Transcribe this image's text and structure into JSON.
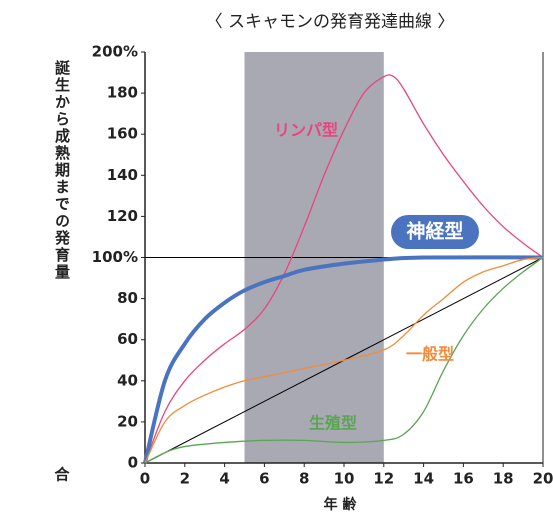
{
  "chart_data": {
    "type": "line",
    "title": "〈 スキャモンの発育発達曲線 〉",
    "xlabel": "年 齢",
    "ylabel": "誕生から成熟期までの発育量",
    "ylabel_tail": "合",
    "xlim": [
      0,
      20
    ],
    "ylim": [
      0,
      200
    ],
    "xticks": [
      0,
      2,
      4,
      6,
      8,
      10,
      12,
      14,
      16,
      18,
      20
    ],
    "yticks": [
      0,
      20,
      40,
      60,
      80,
      {
        "value": 100,
        "label": "100%"
      },
      120,
      140,
      160,
      180,
      {
        "value": 200,
        "label": "200%"
      }
    ],
    "shade": [
      5,
      12
    ],
    "shade_color": "#a9a9b3",
    "diagonal": {
      "x": [
        0,
        20
      ],
      "values": [
        0,
        100
      ],
      "color": "#000000"
    },
    "series": [
      {
        "name": "リンパ型",
        "color": "#e8457e",
        "width": 1.3,
        "x": [
          0,
          1,
          2,
          3,
          4,
          5,
          6,
          7,
          8,
          9,
          10,
          11,
          12,
          12.5,
          13,
          14,
          15,
          16,
          17,
          18,
          19,
          20
        ],
        "values": [
          0,
          25,
          40,
          50,
          58,
          65,
          75,
          92,
          115,
          140,
          162,
          180,
          188,
          188,
          182,
          165,
          150,
          137,
          125,
          115,
          107,
          100
        ]
      },
      {
        "name": "神経型",
        "color": "#4a74c0",
        "width": 4,
        "boxed": true,
        "x": [
          0,
          1,
          2,
          3,
          4,
          5,
          6,
          7,
          8,
          10,
          12,
          14,
          20
        ],
        "values": [
          0,
          40,
          58,
          70,
          78,
          84,
          88,
          91,
          94,
          97,
          99,
          100,
          100
        ]
      },
      {
        "name": "一般型",
        "color": "#f08c3c",
        "width": 1.3,
        "x": [
          0,
          1,
          2,
          3,
          4,
          5,
          6,
          8,
          10,
          12,
          13,
          14,
          15,
          16,
          17,
          18,
          19,
          20
        ],
        "values": [
          0,
          20,
          28,
          33,
          37,
          40,
          42,
          46,
          50,
          55,
          62,
          72,
          80,
          88,
          93,
          96,
          99,
          100
        ]
      },
      {
        "name": "生殖型",
        "color": "#5aa552",
        "width": 1.3,
        "x": [
          0,
          1,
          2,
          4,
          6,
          8,
          10,
          12,
          13,
          14,
          15,
          16,
          17,
          18,
          19,
          20
        ],
        "values": [
          0,
          5,
          8,
          10,
          11,
          11,
          10,
          11,
          14,
          25,
          45,
          62,
          75,
          85,
          93,
          100
        ]
      }
    ]
  }
}
